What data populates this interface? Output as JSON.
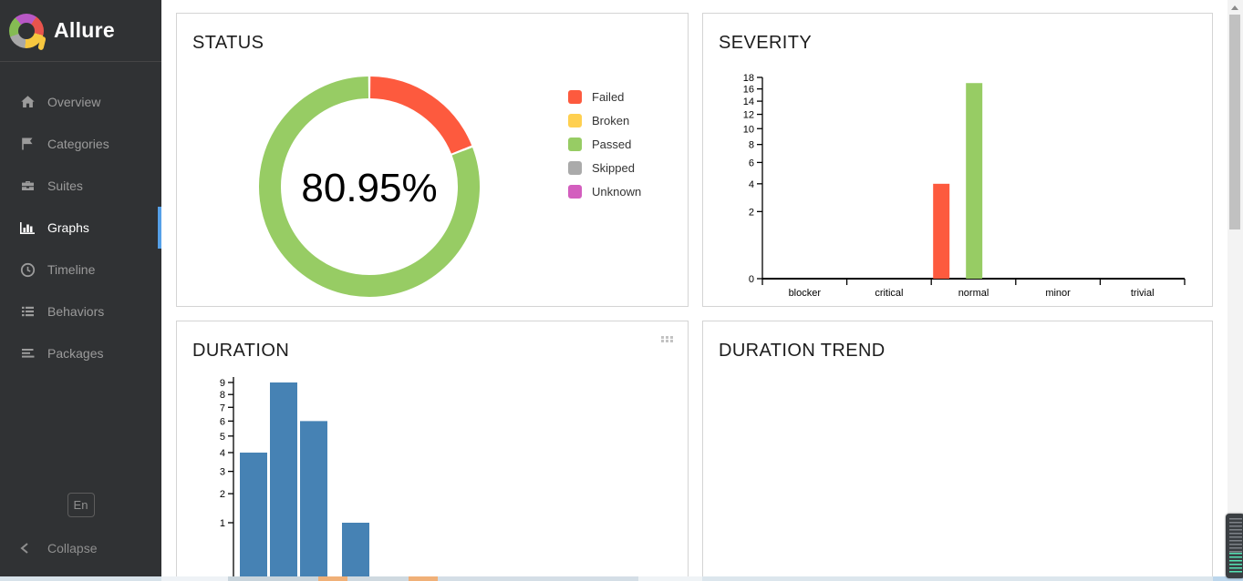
{
  "sidebar": {
    "brand": "Allure",
    "items": [
      {
        "label": "Overview",
        "icon": "home-icon",
        "active": false
      },
      {
        "label": "Categories",
        "icon": "flag-icon",
        "active": false
      },
      {
        "label": "Suites",
        "icon": "briefcase-icon",
        "active": false
      },
      {
        "label": "Graphs",
        "icon": "bar-chart-icon",
        "active": true
      },
      {
        "label": "Timeline",
        "icon": "clock-icon",
        "active": false
      },
      {
        "label": "Behaviors",
        "icon": "list-icon",
        "active": false
      },
      {
        "label": "Packages",
        "icon": "align-left-icon",
        "active": false
      }
    ],
    "language_button": "En",
    "collapse_label": "Collapse",
    "active_indicator_color": "#55a0e8"
  },
  "cards": {
    "status": {
      "title": "STATUS"
    },
    "severity": {
      "title": "SEVERITY"
    },
    "duration": {
      "title": "DURATION"
    },
    "duration_trend": {
      "title": "DURATION TREND"
    }
  },
  "chart_data": [
    {
      "type": "donut",
      "title": "STATUS",
      "center_label": "80.95%",
      "legend_position": "right",
      "series": [
        {
          "name": "Failed",
          "value": 4,
          "color": "#fd5a3e"
        },
        {
          "name": "Broken",
          "value": 0,
          "color": "#ffd050"
        },
        {
          "name": "Passed",
          "value": 17,
          "color": "#97cc64"
        },
        {
          "name": "Skipped",
          "value": 0,
          "color": "#aaaaaa"
        },
        {
          "name": "Unknown",
          "value": 0,
          "color": "#d35ebe"
        }
      ]
    },
    {
      "type": "bar",
      "title": "SEVERITY",
      "categories": [
        "blocker",
        "critical",
        "normal",
        "minor",
        "trivial"
      ],
      "series": [
        {
          "name": "failed",
          "color": "#fd5a3e",
          "values": [
            0,
            0,
            4,
            0,
            0
          ]
        },
        {
          "name": "passed",
          "color": "#97cc64",
          "values": [
            0,
            0,
            17,
            0,
            0
          ]
        }
      ],
      "yticks": [
        0,
        2,
        4,
        6,
        8,
        10,
        12,
        14,
        16,
        18
      ],
      "ylim": [
        0,
        18
      ],
      "scale": "sqrt",
      "grid": false,
      "legend_position": "none"
    },
    {
      "type": "bar",
      "title": "DURATION",
      "values": [
        4,
        9,
        6,
        0,
        1
      ],
      "yticks": [
        1,
        2,
        3,
        4,
        5,
        6,
        7,
        8,
        9
      ],
      "ylim": [
        0,
        9
      ],
      "scale": "sqrt",
      "bar_color": "#4682b4",
      "grid": false,
      "x_labels_visible": false
    }
  ]
}
